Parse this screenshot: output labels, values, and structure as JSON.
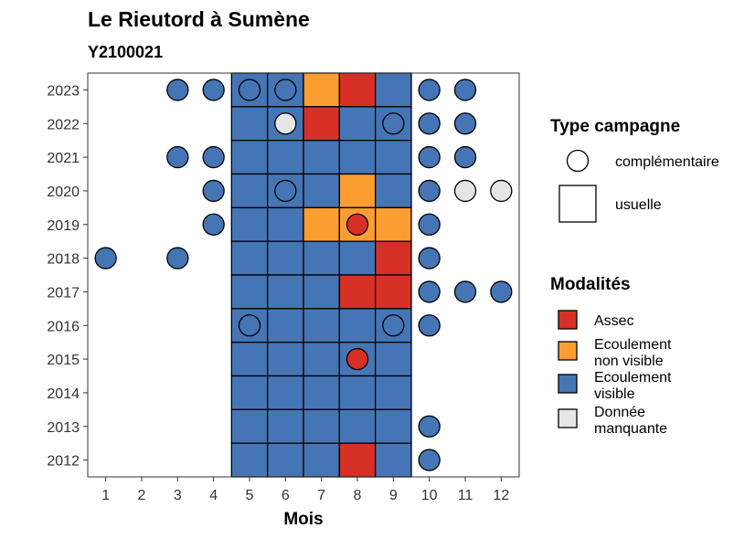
{
  "chart_data": {
    "type": "heatmap",
    "title": "Le Rieutord à Sumène",
    "subtitle": "Y2100021",
    "xlabel": "Mois",
    "ylabel": "",
    "x_ticks": [
      1,
      2,
      3,
      4,
      5,
      6,
      7,
      8,
      9,
      10,
      11,
      12
    ],
    "y_ticks": [
      2012,
      2013,
      2014,
      2015,
      2016,
      2017,
      2018,
      2019,
      2020,
      2021,
      2022,
      2023
    ],
    "grid": false,
    "legend_placement": "right",
    "legend_type": {
      "title": "Type campagne",
      "items": [
        {
          "shape": "circle",
          "label": "complémentaire"
        },
        {
          "shape": "square",
          "label": "usuelle"
        }
      ]
    },
    "legend_modalites": {
      "title": "Modalités",
      "items": [
        {
          "key": "assec",
          "label_lines": [
            "Assec"
          ],
          "color": "#d73027"
        },
        {
          "key": "nonvisible",
          "label_lines": [
            "Ecoulement",
            "non visible"
          ],
          "color": "#fc9d32"
        },
        {
          "key": "visible",
          "label_lines": [
            "Ecoulement",
            "visible"
          ],
          "color": "#4575b4"
        },
        {
          "key": "manquante",
          "label_lines": [
            "Donnée",
            "manquante"
          ],
          "color": "#e6e6e6"
        }
      ]
    },
    "usuelle": [
      {
        "year": 2023,
        "months": {
          "5": "visible",
          "6": "visible",
          "7": "nonvisible",
          "8": "assec",
          "9": "visible"
        }
      },
      {
        "year": 2022,
        "months": {
          "5": "visible",
          "6": "visible",
          "7": "assec",
          "8": "visible",
          "9": "visible"
        }
      },
      {
        "year": 2021,
        "months": {
          "5": "visible",
          "6": "visible",
          "7": "visible",
          "8": "visible",
          "9": "visible"
        }
      },
      {
        "year": 2020,
        "months": {
          "5": "visible",
          "6": "visible",
          "7": "visible",
          "8": "nonvisible",
          "9": "visible"
        }
      },
      {
        "year": 2019,
        "months": {
          "5": "visible",
          "6": "visible",
          "7": "nonvisible",
          "8": "nonvisible",
          "9": "nonvisible"
        }
      },
      {
        "year": 2018,
        "months": {
          "5": "visible",
          "6": "visible",
          "7": "visible",
          "8": "visible",
          "9": "assec"
        }
      },
      {
        "year": 2017,
        "months": {
          "5": "visible",
          "6": "visible",
          "7": "visible",
          "8": "assec",
          "9": "assec"
        }
      },
      {
        "year": 2016,
        "months": {
          "5": "visible",
          "6": "visible",
          "7": "visible",
          "8": "visible",
          "9": "visible"
        }
      },
      {
        "year": 2015,
        "months": {
          "5": "visible",
          "6": "visible",
          "7": "visible",
          "8": "visible",
          "9": "visible"
        }
      },
      {
        "year": 2014,
        "months": {
          "5": "visible",
          "6": "visible",
          "7": "visible",
          "8": "visible",
          "9": "visible"
        }
      },
      {
        "year": 2013,
        "months": {
          "5": "visible",
          "6": "visible",
          "7": "visible",
          "8": "visible",
          "9": "visible"
        }
      },
      {
        "year": 2012,
        "months": {
          "5": "visible",
          "6": "visible",
          "7": "visible",
          "8": "assec",
          "9": "visible"
        }
      }
    ],
    "complementaire": [
      {
        "year": 2023,
        "month": 3,
        "status": "visible"
      },
      {
        "year": 2023,
        "month": 4,
        "status": "visible"
      },
      {
        "year": 2023,
        "month": 5,
        "status": "visible"
      },
      {
        "year": 2023,
        "month": 6,
        "status": "visible"
      },
      {
        "year": 2023,
        "month": 10,
        "status": "visible"
      },
      {
        "year": 2023,
        "month": 11,
        "status": "visible"
      },
      {
        "year": 2022,
        "month": 6,
        "status": "manquante"
      },
      {
        "year": 2022,
        "month": 9,
        "status": "visible"
      },
      {
        "year": 2022,
        "month": 10,
        "status": "visible"
      },
      {
        "year": 2022,
        "month": 11,
        "status": "visible"
      },
      {
        "year": 2021,
        "month": 3,
        "status": "visible"
      },
      {
        "year": 2021,
        "month": 4,
        "status": "visible"
      },
      {
        "year": 2021,
        "month": 10,
        "status": "visible"
      },
      {
        "year": 2021,
        "month": 11,
        "status": "visible"
      },
      {
        "year": 2020,
        "month": 4,
        "status": "visible"
      },
      {
        "year": 2020,
        "month": 6,
        "status": "visible"
      },
      {
        "year": 2020,
        "month": 10,
        "status": "visible"
      },
      {
        "year": 2020,
        "month": 11,
        "status": "manquante"
      },
      {
        "year": 2020,
        "month": 12,
        "status": "manquante"
      },
      {
        "year": 2019,
        "month": 4,
        "status": "visible"
      },
      {
        "year": 2019,
        "month": 8,
        "status": "assec"
      },
      {
        "year": 2019,
        "month": 10,
        "status": "visible"
      },
      {
        "year": 2018,
        "month": 1,
        "status": "visible"
      },
      {
        "year": 2018,
        "month": 3,
        "status": "visible"
      },
      {
        "year": 2018,
        "month": 10,
        "status": "visible"
      },
      {
        "year": 2017,
        "month": 10,
        "status": "visible"
      },
      {
        "year": 2017,
        "month": 11,
        "status": "visible"
      },
      {
        "year": 2017,
        "month": 12,
        "status": "visible"
      },
      {
        "year": 2016,
        "month": 5,
        "status": "visible"
      },
      {
        "year": 2016,
        "month": 9,
        "status": "visible"
      },
      {
        "year": 2016,
        "month": 10,
        "status": "visible"
      },
      {
        "year": 2015,
        "month": 8,
        "status": "assec"
      },
      {
        "year": 2013,
        "month": 10,
        "status": "visible"
      },
      {
        "year": 2012,
        "month": 10,
        "status": "visible"
      }
    ]
  }
}
